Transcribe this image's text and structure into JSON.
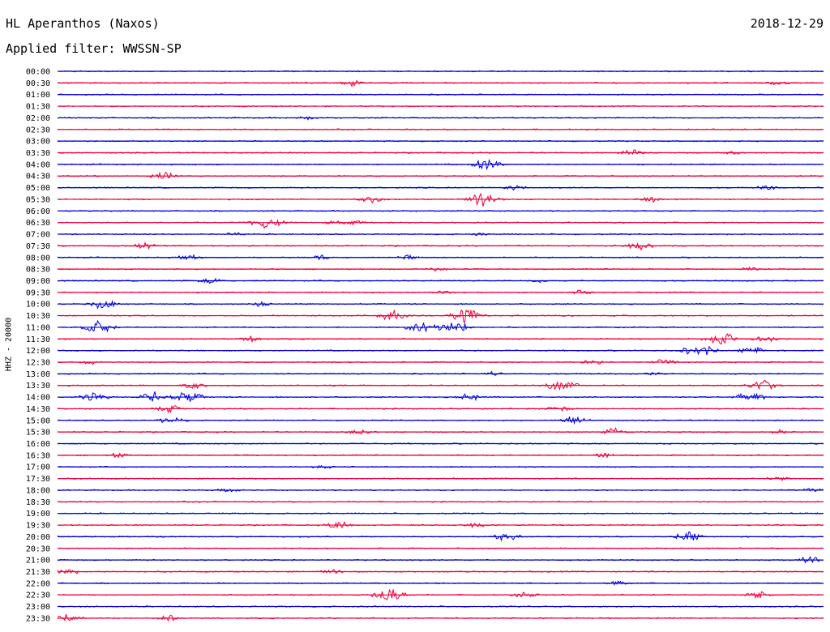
{
  "header": {
    "station": "HL Aperanthos (Naxos)",
    "date": "2018-12-29",
    "filter_line": "Applied filter: WWSSN-SP",
    "channel_label": "HHZ - 20000"
  },
  "colors": {
    "even_trace": "#0000d8",
    "odd_trace": "#f0003c",
    "text": "#000000",
    "background": "#ffffff"
  },
  "chart_data": {
    "type": "line",
    "title": "HL Aperanthos (Naxos)",
    "subtitle": "Applied filter: WWSSN-SP",
    "ylabel": "HHZ - 20000",
    "xlabel": "",
    "grid": false,
    "legend": "none",
    "y_tick_labels": [
      "00:00",
      "00:30",
      "01:00",
      "01:30",
      "02:00",
      "02:30",
      "03:00",
      "03:30",
      "04:00",
      "04:30",
      "05:00",
      "05:30",
      "06:00",
      "06:30",
      "07:00",
      "07:30",
      "08:00",
      "08:30",
      "09:00",
      "09:30",
      "10:00",
      "10:30",
      "11:00",
      "11:30",
      "12:00",
      "12:30",
      "13:00",
      "13:30",
      "14:00",
      "14:30",
      "15:00",
      "15:30",
      "16:00",
      "16:30",
      "17:00",
      "17:30",
      "18:00",
      "18:30",
      "19:00",
      "19:30",
      "20:00",
      "20:30",
      "21:00",
      "21:30",
      "22:00",
      "22:30",
      "23:00",
      "23:30"
    ],
    "row_minutes": 30,
    "trace_color_order": [
      "blue",
      "red"
    ],
    "note_values": "Each row is a 30-minute trace; events are given as [minute offset within row 0-30, relative amplitude 0-1].",
    "events": [
      {
        "row": "00:30",
        "bursts": [
          [
            11.5,
            0.25
          ],
          [
            28.2,
            0.2
          ]
        ]
      },
      {
        "row": "02:00",
        "bursts": [
          [
            9.8,
            0.15
          ]
        ]
      },
      {
        "row": "03:30",
        "bursts": [
          [
            22.5,
            0.3
          ],
          [
            26.5,
            0.15
          ]
        ]
      },
      {
        "row": "04:00",
        "bursts": [
          [
            16.8,
            0.55
          ]
        ]
      },
      {
        "row": "04:30",
        "bursts": [
          [
            4.2,
            0.4
          ]
        ]
      },
      {
        "row": "05:00",
        "bursts": [
          [
            17.9,
            0.25
          ],
          [
            27.8,
            0.2
          ]
        ]
      },
      {
        "row": "05:30",
        "bursts": [
          [
            12.3,
            0.3
          ],
          [
            16.7,
            0.6
          ],
          [
            23.2,
            0.3
          ]
        ]
      },
      {
        "row": "06:30",
        "bursts": [
          [
            8.2,
            0.55
          ],
          [
            10.8,
            0.2
          ],
          [
            11.6,
            0.2
          ]
        ]
      },
      {
        "row": "07:00",
        "bursts": [
          [
            7.0,
            0.15
          ],
          [
            16.5,
            0.15
          ]
        ]
      },
      {
        "row": "07:30",
        "bursts": [
          [
            3.4,
            0.3
          ],
          [
            22.8,
            0.35
          ]
        ]
      },
      {
        "row": "08:00",
        "bursts": [
          [
            5.1,
            0.25
          ],
          [
            10.3,
            0.2
          ],
          [
            13.7,
            0.2
          ]
        ]
      },
      {
        "row": "08:30",
        "bursts": [
          [
            14.8,
            0.2
          ],
          [
            27.1,
            0.2
          ]
        ]
      },
      {
        "row": "09:00",
        "bursts": [
          [
            6.0,
            0.25
          ],
          [
            18.9,
            0.15
          ]
        ]
      },
      {
        "row": "09:30",
        "bursts": [
          [
            15.0,
            0.2
          ],
          [
            20.5,
            0.25
          ]
        ]
      },
      {
        "row": "10:00",
        "bursts": [
          [
            1.8,
            0.45
          ],
          [
            7.9,
            0.2
          ]
        ]
      },
      {
        "row": "10:30",
        "bursts": [
          [
            13.2,
            0.5
          ],
          [
            15.9,
            0.5
          ],
          [
            16.2,
            0.45
          ]
        ]
      },
      {
        "row": "11:00",
        "bursts": [
          [
            1.6,
            0.6
          ],
          [
            14.3,
            0.55
          ],
          [
            15.6,
            0.6
          ]
        ]
      },
      {
        "row": "11:30",
        "bursts": [
          [
            7.6,
            0.25
          ],
          [
            26.0,
            0.6
          ],
          [
            27.7,
            0.35
          ]
        ]
      },
      {
        "row": "12:00",
        "bursts": [
          [
            25.1,
            0.6
          ],
          [
            27.2,
            0.35
          ]
        ]
      },
      {
        "row": "12:30",
        "bursts": [
          [
            1.3,
            0.2
          ],
          [
            21.0,
            0.25
          ],
          [
            23.8,
            0.3
          ]
        ]
      },
      {
        "row": "13:00",
        "bursts": [
          [
            17.1,
            0.2
          ],
          [
            23.4,
            0.15
          ]
        ]
      },
      {
        "row": "13:30",
        "bursts": [
          [
            5.3,
            0.3
          ],
          [
            19.8,
            0.55
          ],
          [
            27.6,
            0.55
          ]
        ]
      },
      {
        "row": "14:00",
        "bursts": [
          [
            1.4,
            0.45
          ],
          [
            3.8,
            0.45
          ],
          [
            5.1,
            0.5
          ],
          [
            16.2,
            0.35
          ],
          [
            27.1,
            0.5
          ]
        ]
      },
      {
        "row": "14:30",
        "bursts": [
          [
            4.4,
            0.35
          ],
          [
            19.6,
            0.3
          ]
        ]
      },
      {
        "row": "15:00",
        "bursts": [
          [
            4.5,
            0.35
          ],
          [
            20.2,
            0.45
          ]
        ]
      },
      {
        "row": "15:30",
        "bursts": [
          [
            11.8,
            0.25
          ],
          [
            21.8,
            0.35
          ],
          [
            28.3,
            0.2
          ]
        ]
      },
      {
        "row": "16:30",
        "bursts": [
          [
            2.4,
            0.25
          ],
          [
            21.4,
            0.2
          ]
        ]
      },
      {
        "row": "17:00",
        "bursts": [
          [
            10.4,
            0.15
          ]
        ]
      },
      {
        "row": "17:30",
        "bursts": [
          [
            28.2,
            0.2
          ]
        ]
      },
      {
        "row": "18:00",
        "bursts": [
          [
            6.7,
            0.2
          ],
          [
            29.6,
            0.2
          ]
        ]
      },
      {
        "row": "19:30",
        "bursts": [
          [
            11.0,
            0.35
          ],
          [
            16.4,
            0.2
          ]
        ]
      },
      {
        "row": "20:00",
        "bursts": [
          [
            17.6,
            0.4
          ],
          [
            24.7,
            0.45
          ]
        ]
      },
      {
        "row": "21:00",
        "bursts": [
          [
            29.5,
            0.4
          ]
        ]
      },
      {
        "row": "21:30",
        "bursts": [
          [
            0.3,
            0.35
          ],
          [
            10.7,
            0.2
          ]
        ]
      },
      {
        "row": "22:00",
        "bursts": [
          [
            22.0,
            0.2
          ]
        ]
      },
      {
        "row": "22:30",
        "bursts": [
          [
            13.0,
            0.6
          ],
          [
            18.3,
            0.3
          ],
          [
            27.4,
            0.35
          ]
        ]
      },
      {
        "row": "23:30",
        "bursts": [
          [
            0.4,
            0.35
          ],
          [
            4.4,
            0.25
          ]
        ]
      }
    ]
  }
}
